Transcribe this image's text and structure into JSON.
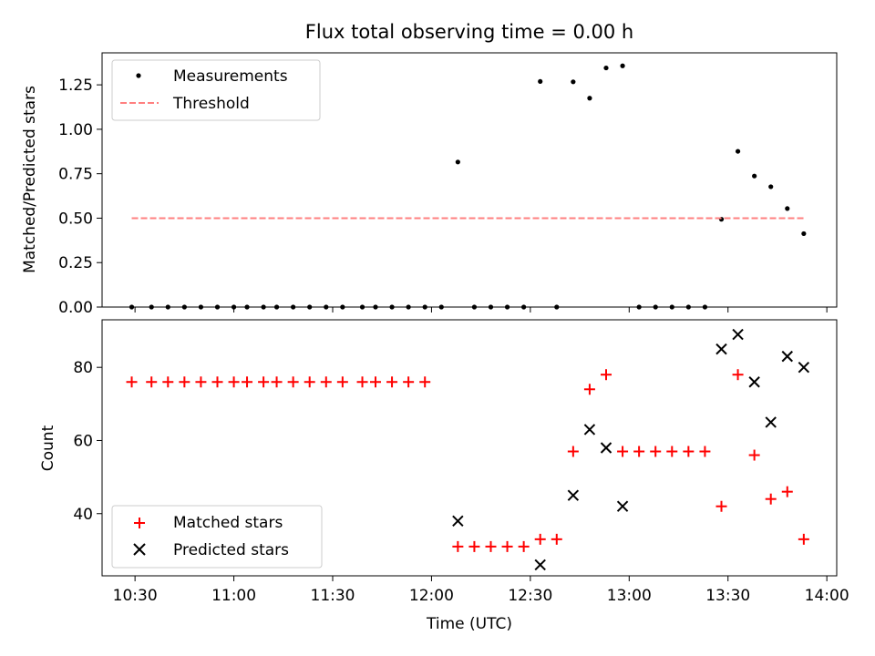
{
  "chart_data": {
    "type": "scatter",
    "title": "Flux total observing time = 0.00 h",
    "xlabel": "Time (UTC)",
    "xlim": [
      "10:20",
      "14:03"
    ],
    "xticks": [
      "10:30",
      "11:00",
      "11:30",
      "12:00",
      "12:30",
      "13:00",
      "13:30",
      "14:00"
    ],
    "x": [
      "10:29",
      "10:35",
      "10:40",
      "10:45",
      "10:50",
      "10:55",
      "11:00",
      "11:04",
      "11:09",
      "11:13",
      "11:18",
      "11:23",
      "11:28",
      "11:33",
      "11:39",
      "11:43",
      "11:48",
      "11:53",
      "11:58",
      "12:03",
      "12:08",
      "12:13",
      "12:18",
      "12:23",
      "12:28",
      "12:33",
      "12:38",
      "12:43",
      "12:48",
      "12:53",
      "12:58",
      "13:03",
      "13:08",
      "13:13",
      "13:18",
      "13:23",
      "13:28",
      "13:33",
      "13:38",
      "13:43",
      "13:48",
      "13:53"
    ],
    "panels": [
      {
        "ylabel": "Matched/Predicted stars",
        "ylim": [
          0,
          1.43
        ],
        "yticks": [
          "0.00",
          "0.25",
          "0.50",
          "0.75",
          "1.00",
          "1.25"
        ],
        "legend_position": "upper left",
        "series": [
          {
            "name": "Measurements",
            "marker": "dot",
            "color": "#000000",
            "values": [
              0,
              0,
              0,
              0,
              0,
              0,
              0,
              0,
              0,
              0,
              0,
              0,
              0,
              0,
              0,
              0,
              0,
              0,
              0,
              0,
              0.816,
              0,
              0,
              0,
              0,
              1.269,
              0,
              1.267,
              1.175,
              1.345,
              1.357,
              0,
              0,
              0,
              0,
              0,
              0.494,
              0.876,
              0.737,
              0.677,
              0.554,
              0.413
            ]
          },
          {
            "name": "Threshold",
            "style": "dashed",
            "color": "#ff8080",
            "value": 0.5,
            "x_range": [
              "10:29",
              "13:53"
            ]
          }
        ]
      },
      {
        "ylabel": "Count",
        "ylim": [
          23,
          93
        ],
        "yticks": [
          "40",
          "60",
          "80"
        ],
        "legend_position": "lower left",
        "series": [
          {
            "name": "Matched stars",
            "marker": "plus",
            "color": "#ff0000",
            "values": [
              76,
              76,
              76,
              76,
              76,
              76,
              76,
              76,
              76,
              76,
              76,
              76,
              76,
              76,
              76,
              76,
              76,
              76,
              76,
              31,
              31,
              31,
              31,
              31,
              33,
              33,
              57,
              74,
              78,
              57,
              57,
              57,
              57,
              57,
              57,
              42,
              78,
              56,
              44,
              46,
              33
            ],
            "x_index": [
              0,
              1,
              2,
              3,
              4,
              5,
              6,
              7,
              8,
              9,
              10,
              11,
              12,
              13,
              14,
              15,
              16,
              17,
              18,
              20,
              21,
              22,
              23,
              24,
              25,
              26,
              27,
              28,
              29,
              30,
              31,
              32,
              33,
              34,
              35,
              36,
              37,
              38,
              39,
              40,
              41
            ]
          },
          {
            "name": "Predicted stars",
            "marker": "x",
            "color": "#000000",
            "values": [
              38,
              26,
              45,
              63,
              58,
              42,
              85,
              89,
              76,
              65,
              83,
              80
            ],
            "x_index": [
              20,
              25,
              27,
              28,
              29,
              30,
              36,
              37,
              38,
              39,
              40,
              41
            ]
          }
        ]
      }
    ]
  }
}
